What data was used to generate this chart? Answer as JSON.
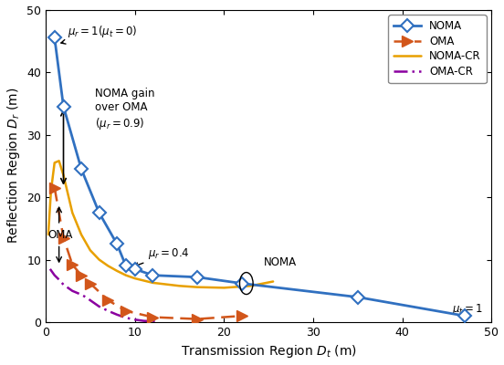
{
  "noma_x": [
    1,
    2,
    4,
    6,
    8,
    9,
    10,
    12,
    17,
    22,
    35,
    47
  ],
  "noma_y": [
    45.5,
    34.5,
    24.5,
    17.5,
    12.5,
    9.0,
    8.5,
    7.5,
    7.2,
    6.2,
    4.0,
    1.0
  ],
  "oma_x": [
    1,
    2,
    3,
    4,
    5,
    7,
    9,
    12,
    17,
    22
  ],
  "oma_y": [
    21.5,
    13.5,
    9.2,
    7.5,
    6.2,
    3.5,
    1.8,
    0.8,
    0.5,
    1.0
  ],
  "noma_cr_x": [
    0.3,
    0.6,
    1.0,
    1.5,
    2.0,
    2.5,
    3.0,
    4.0,
    5.0,
    6.0,
    7.0,
    8.0,
    9.0,
    10.0,
    12.0,
    15.0,
    17.0,
    20.0,
    23.0,
    25.5
  ],
  "noma_cr_y": [
    14.0,
    21.0,
    25.5,
    25.8,
    23.5,
    20.5,
    17.5,
    14.0,
    11.5,
    10.0,
    9.0,
    8.2,
    7.5,
    7.0,
    6.3,
    5.8,
    5.6,
    5.5,
    5.8,
    6.5
  ],
  "oma_cr_x": [
    0.5,
    1.0,
    1.5,
    2.0,
    2.5,
    3.0,
    3.5,
    4.0,
    4.5,
    5.0,
    5.5,
    6.0,
    7.0,
    8.0,
    9.0,
    10.0,
    11.0,
    12.5
  ],
  "oma_cr_y": [
    8.5,
    7.5,
    6.8,
    6.0,
    5.5,
    5.0,
    4.7,
    4.4,
    4.0,
    3.5,
    3.0,
    2.5,
    1.8,
    1.2,
    0.7,
    0.4,
    0.2,
    0.1
  ],
  "noma_color": "#3070C0",
  "oma_color": "#D2561A",
  "noma_cr_color": "#E8A000",
  "oma_cr_color": "#8B00A0",
  "xlim": [
    0,
    50
  ],
  "ylim": [
    0,
    50
  ],
  "xticks": [
    0,
    10,
    20,
    30,
    40,
    50
  ],
  "yticks": [
    0,
    10,
    20,
    30,
    40,
    50
  ]
}
